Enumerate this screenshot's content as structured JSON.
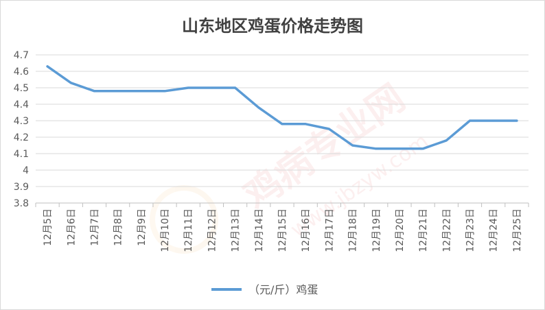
{
  "chart_data": {
    "type": "line",
    "title": "山东地区鸡蛋价格走势图",
    "xlabel": "",
    "ylabel": "",
    "categories": [
      "12月5日",
      "12月6日",
      "12月7日",
      "12月8日",
      "12月9日",
      "12月10日",
      "12月11日",
      "12月12日",
      "12月13日",
      "12月14日",
      "12月15日",
      "12月16日",
      "12月17日",
      "12月18日",
      "12月19日",
      "12月20日",
      "12月21日",
      "12月22日",
      "12月23日",
      "12月24日",
      "12月25日"
    ],
    "series": [
      {
        "name": "（元/斤）鸡蛋",
        "values": [
          4.63,
          4.53,
          4.48,
          4.48,
          4.48,
          4.48,
          4.5,
          4.5,
          4.5,
          4.38,
          4.28,
          4.28,
          4.25,
          4.15,
          4.13,
          4.13,
          4.13,
          4.18,
          4.3,
          4.3,
          4.3
        ]
      }
    ],
    "ylim": [
      3.8,
      4.7
    ],
    "yticks": [
      "3.8",
      "3.9",
      "4",
      "4.1",
      "4.2",
      "4.3",
      "4.4",
      "4.5",
      "4.6",
      "4.7"
    ],
    "grid": true,
    "legend_position": "bottom",
    "line_color": "#5b9bd5"
  }
}
